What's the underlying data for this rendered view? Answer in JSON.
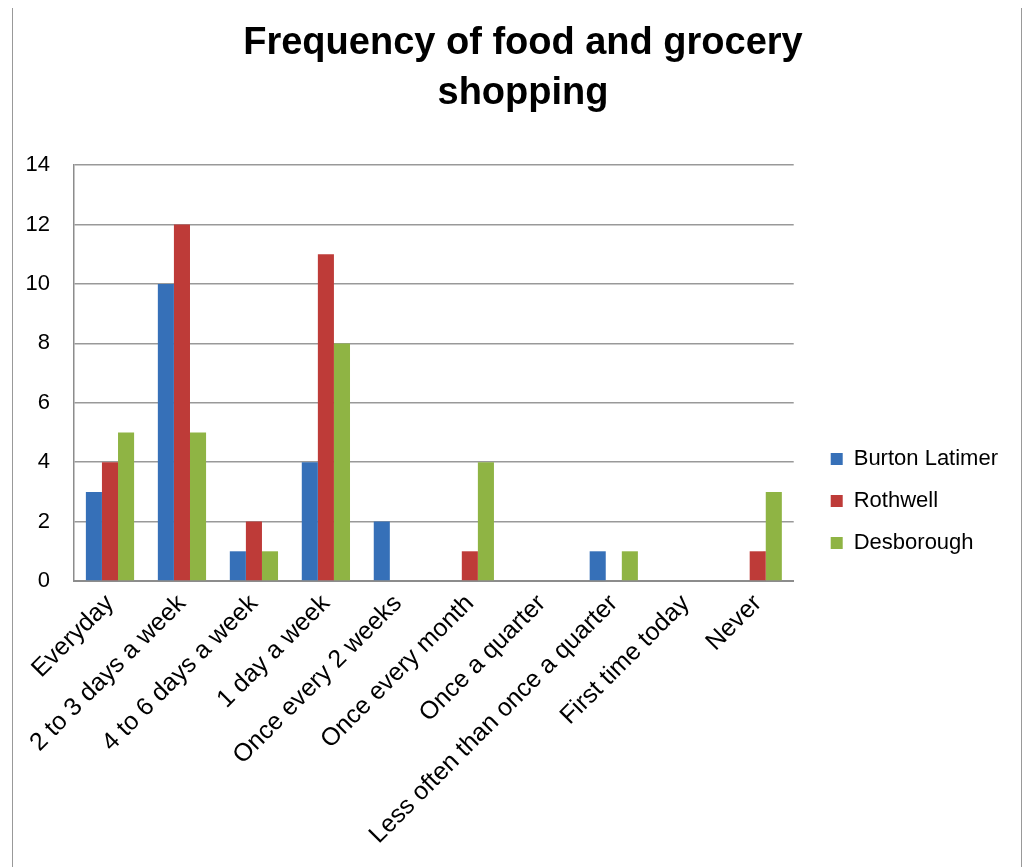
{
  "chart_data": {
    "type": "bar",
    "title": "Frequency of food and grocery shopping",
    "categories": [
      "Everyday",
      "2 to 3 days a week",
      "4 to 6 days a week",
      "1 day a week",
      "Once every 2 weeks",
      "Once every month",
      "Once a quarter",
      "Less often than once a quarter",
      "First time today",
      "Never"
    ],
    "series": [
      {
        "name": "Burton Latimer",
        "color": "#3670b8",
        "values": [
          3,
          10,
          1,
          4,
          2,
          0,
          0,
          1,
          0,
          0
        ]
      },
      {
        "name": "Rothwell",
        "color": "#be3b38",
        "values": [
          4,
          12,
          2,
          11,
          0,
          1,
          0,
          0,
          0,
          1
        ]
      },
      {
        "name": "Desborough",
        "color": "#8fb444",
        "values": [
          5,
          5,
          1,
          8,
          0,
          4,
          0,
          1,
          0,
          3
        ]
      }
    ],
    "ylim": [
      0,
      14
    ],
    "yticks": [
      0,
      2,
      4,
      6,
      8,
      10,
      12,
      14
    ],
    "grid": "y",
    "legend": "right"
  }
}
